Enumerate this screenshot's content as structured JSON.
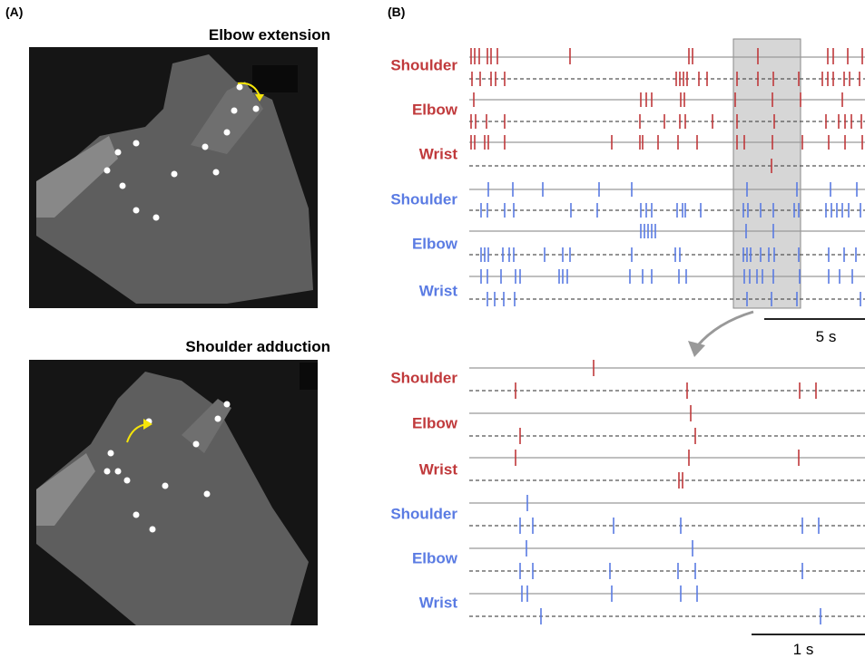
{
  "panel_a": {
    "label": "(A)",
    "images": [
      {
        "title": "Elbow extension"
      },
      {
        "title": "Shoulder adduction"
      }
    ]
  },
  "panel_b": {
    "label": "(B)",
    "overview": {
      "rows": [
        "Shoulder",
        "Elbow",
        "Wrist",
        "Shoulder",
        "Elbow",
        "Wrist"
      ],
      "scale_bar": "5 s"
    },
    "zoom": {
      "rows": [
        "Shoulder",
        "Elbow",
        "Wrist",
        "Shoulder",
        "Elbow",
        "Wrist"
      ],
      "scale_bar": "1 s"
    }
  }
}
